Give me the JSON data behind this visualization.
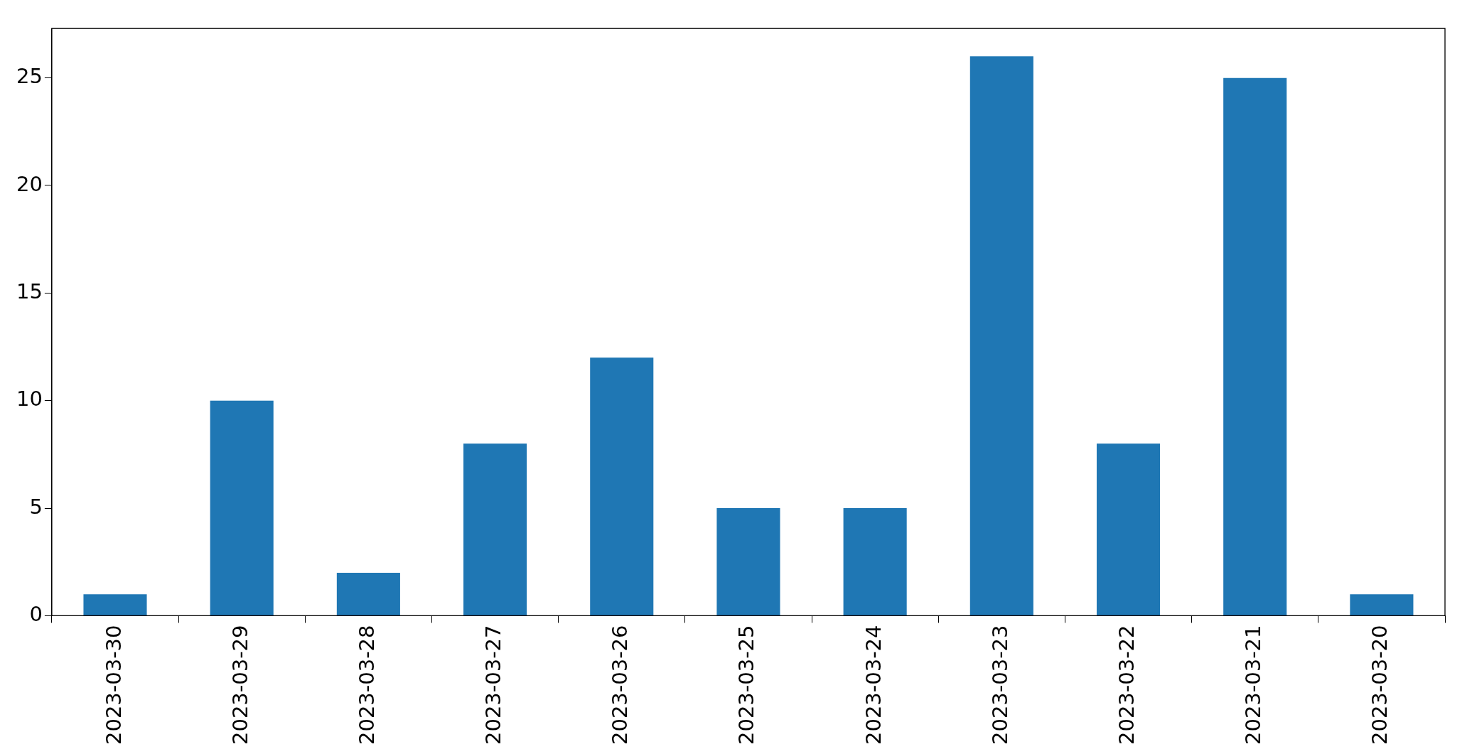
{
  "chart_data": {
    "type": "bar",
    "categories": [
      "2023-03-30",
      "2023-03-29",
      "2023-03-28",
      "2023-03-27",
      "2023-03-26",
      "2023-03-25",
      "2023-03-24",
      "2023-03-23",
      "2023-03-22",
      "2023-03-21",
      "2023-03-20"
    ],
    "values": [
      1,
      10,
      2,
      8,
      12,
      5,
      5,
      26,
      8,
      25,
      1
    ],
    "color": "#1f77b4",
    "ylim": [
      0,
      27.3
    ],
    "yticks": [
      0,
      5,
      10,
      15,
      20,
      25
    ],
    "grid": false,
    "legend": false
  }
}
